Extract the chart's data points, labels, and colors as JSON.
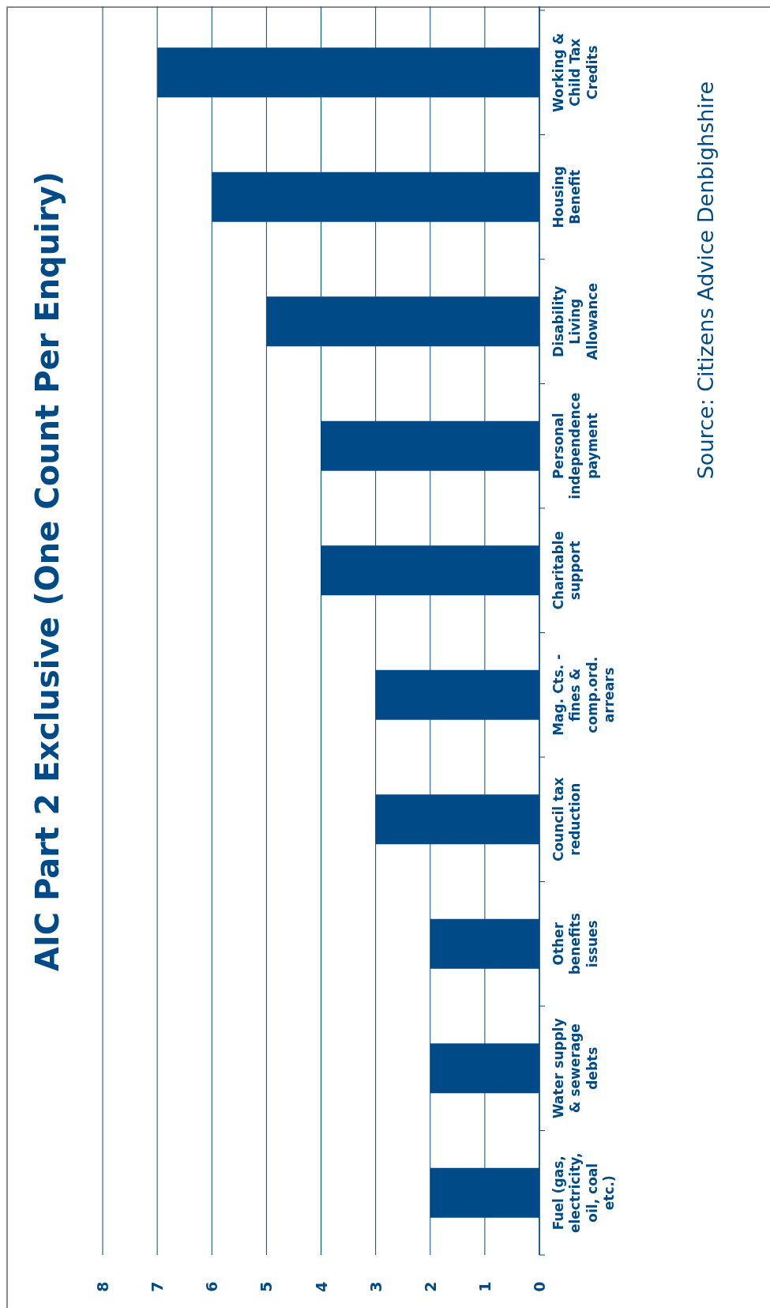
{
  "chart_data": {
    "type": "bar",
    "orientation": "horizontal",
    "title": "AIC Part 2 Exclusive (One Count Per Enquiry)",
    "categories": [
      "Working & Child Tax Credits",
      "Housing Benefit",
      "Disability Living Allowance",
      "Personal independence payment",
      "Charitable support",
      "Mag. Cts. - fines & comp.ord. arrears",
      "Council tax reduction",
      "Other benefits issues",
      "Water supply & sewerage debts",
      "Fuel (gas, electricity, oil, coal etc.)"
    ],
    "values": [
      7,
      6,
      5,
      4,
      4,
      3,
      3,
      2,
      2,
      2
    ],
    "color": "#004b87",
    "xlim": [
      8,
      0
    ],
    "xticks": [
      8,
      7,
      6,
      5,
      4,
      3,
      2,
      1,
      0
    ],
    "grid": "x",
    "annotations": [
      "Source: Citizens Advice Denbighshire"
    ]
  }
}
